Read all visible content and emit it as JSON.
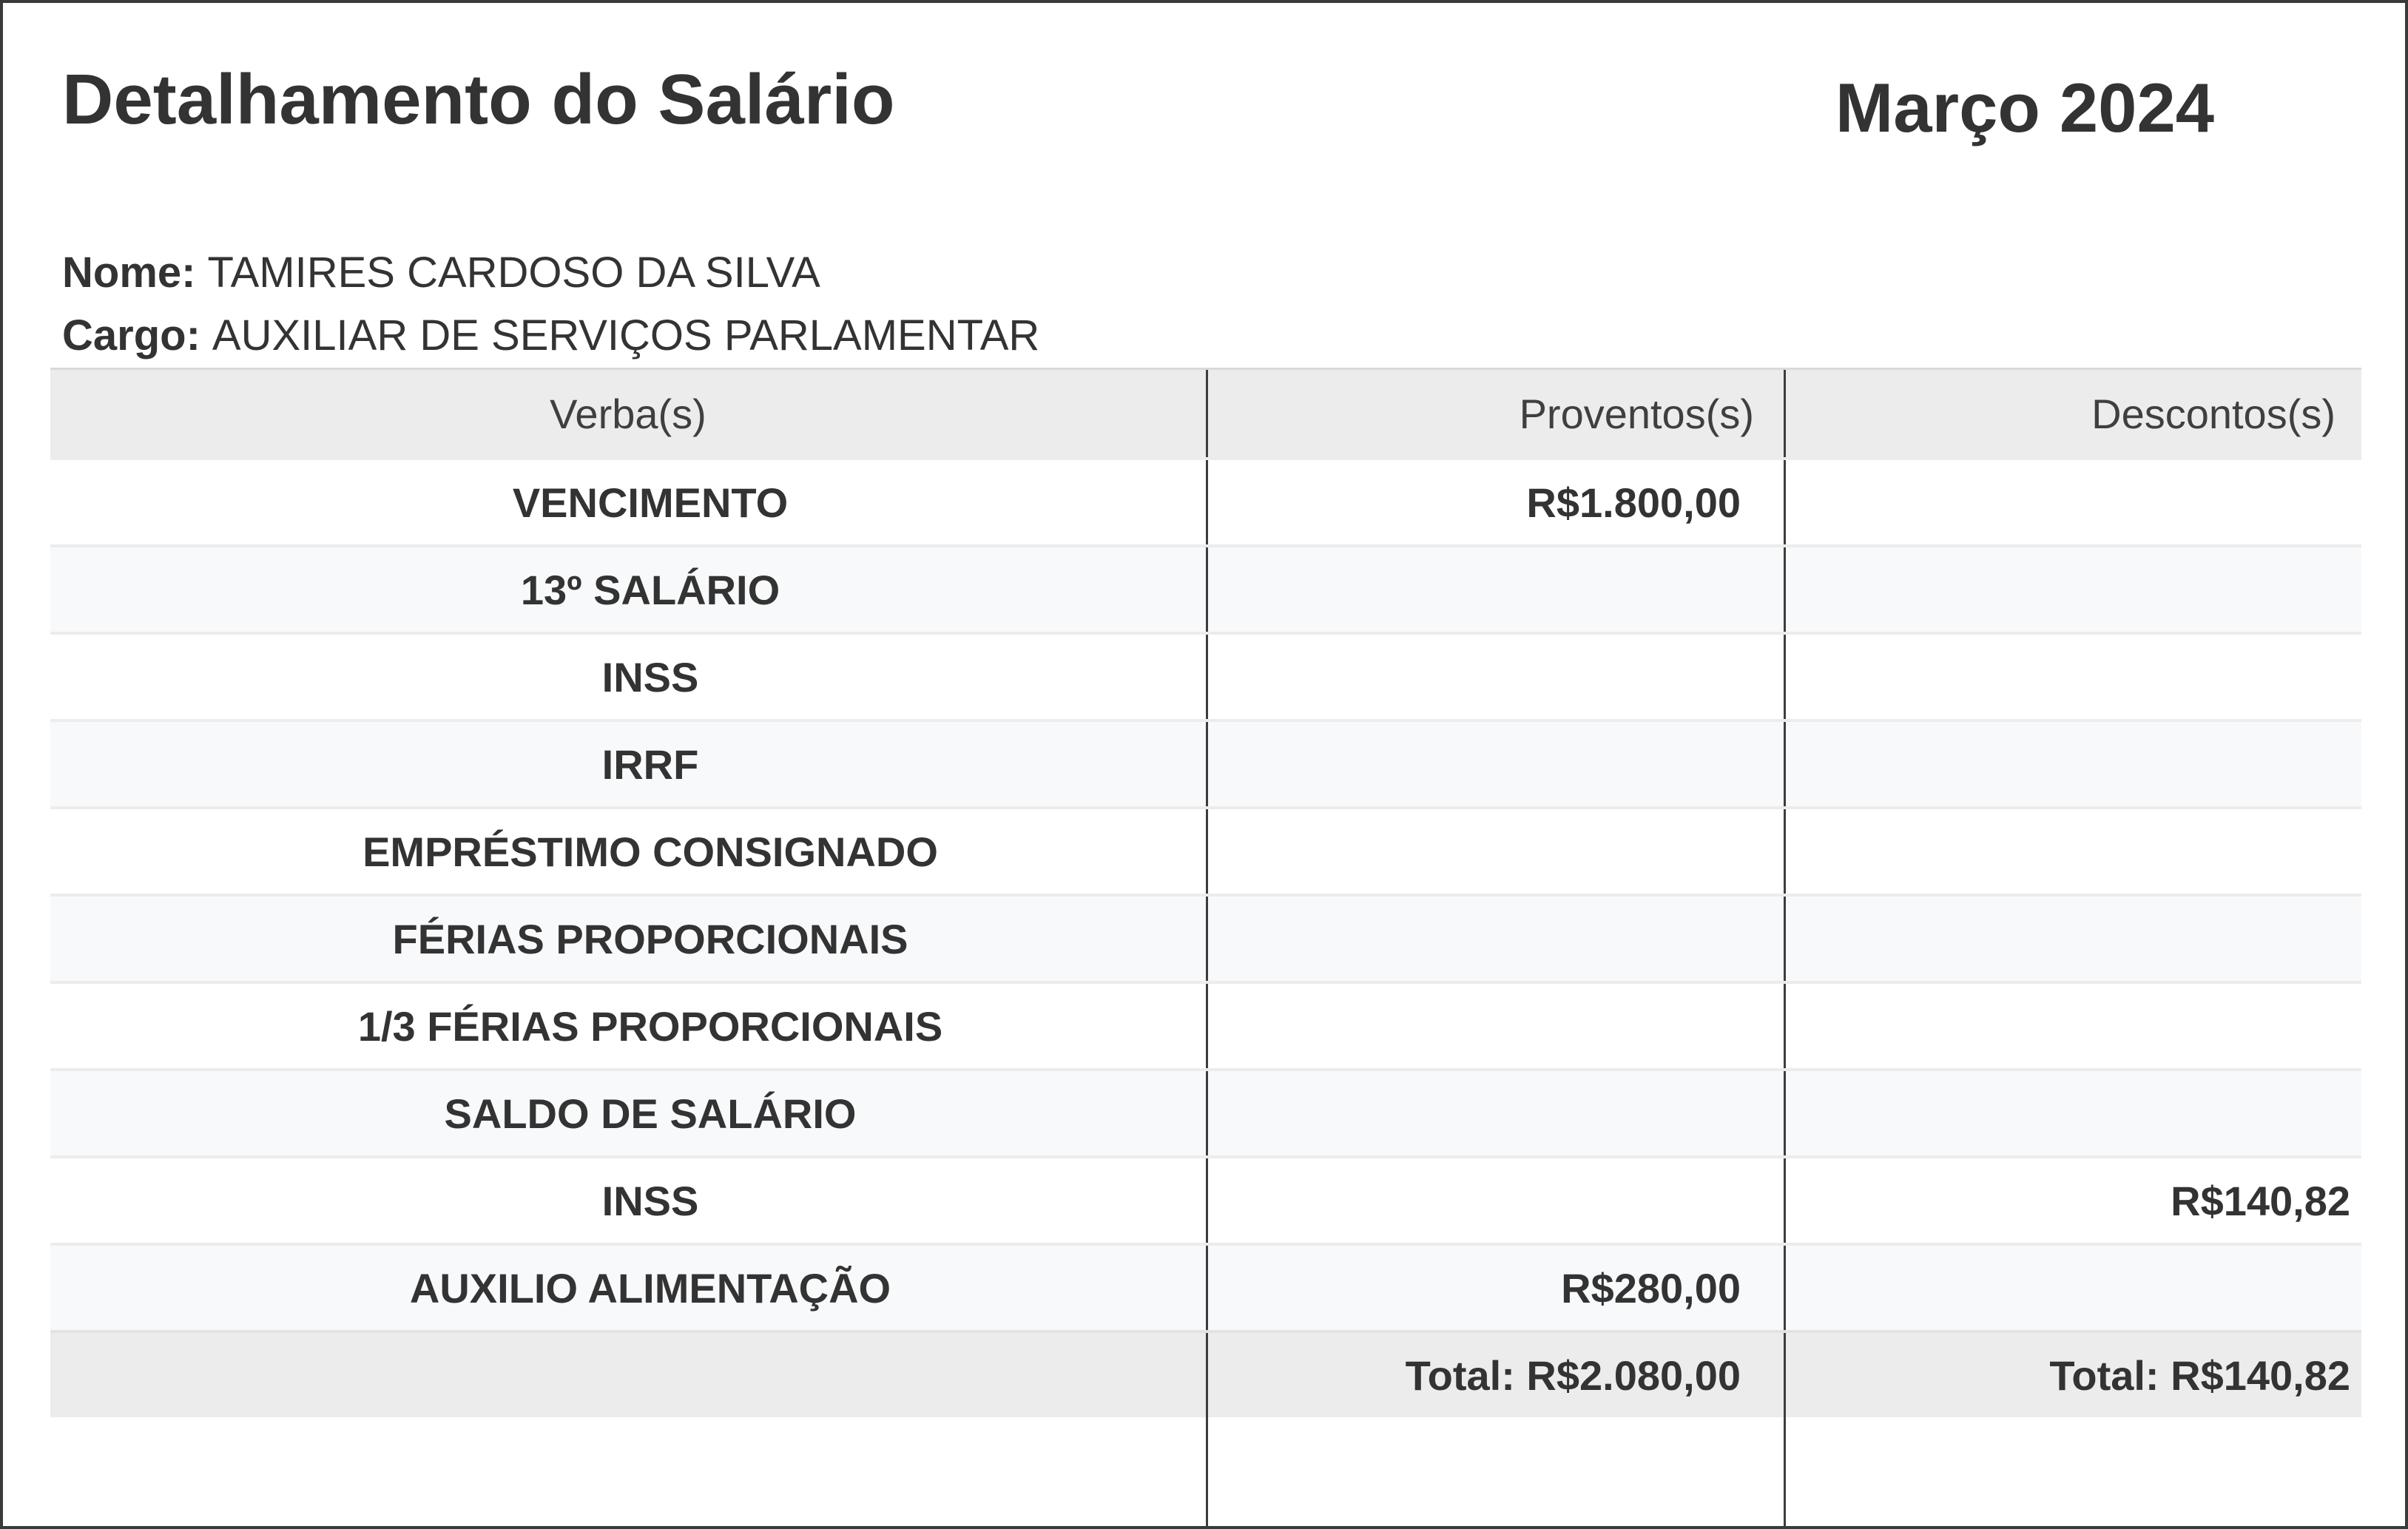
{
  "page": {
    "title": "Detalhamento do Salário",
    "period": "Março 2024",
    "employee": {
      "name_label": "Nome:",
      "name": "TAMIRES CARDOSO DA SILVA",
      "role_label": "Cargo:",
      "role": "AUXILIAR DE SERVIÇOS PARLAMENTAR"
    }
  },
  "table": {
    "headers": [
      "Verba(s)",
      "Proventos(s)",
      "Descontos(s)"
    ],
    "rows": [
      {
        "verba": "VENCIMENTO",
        "proventos": "R$1.800,00",
        "descontos": ""
      },
      {
        "verba": "13º SALÁRIO",
        "proventos": "",
        "descontos": ""
      },
      {
        "verba": "INSS",
        "proventos": "",
        "descontos": ""
      },
      {
        "verba": "IRRF",
        "proventos": "",
        "descontos": ""
      },
      {
        "verba": "EMPRÉSTIMO CONSIGNADO",
        "proventos": "",
        "descontos": ""
      },
      {
        "verba": "FÉRIAS PROPORCIONAIS",
        "proventos": "",
        "descontos": ""
      },
      {
        "verba": "1/3 FÉRIAS PROPORCIONAIS",
        "proventos": "",
        "descontos": ""
      },
      {
        "verba": "SALDO DE SALÁRIO",
        "proventos": "",
        "descontos": ""
      },
      {
        "verba": "INSS",
        "proventos": "",
        "descontos": "R$140,82"
      },
      {
        "verba": "AUXILIO ALIMENTAÇÃO",
        "proventos": "R$280,00",
        "descontos": ""
      }
    ],
    "totals": {
      "proventos": "Total: R$2.080,00",
      "descontos": "Total: R$140,82"
    }
  },
  "colors": {
    "border": "#3a3a3a",
    "divider": "#3d3d3d",
    "header_bg": "#ececec",
    "stripe_bg": "#f8f9fa",
    "totals_bg": "#ececec",
    "text": "#333333"
  }
}
